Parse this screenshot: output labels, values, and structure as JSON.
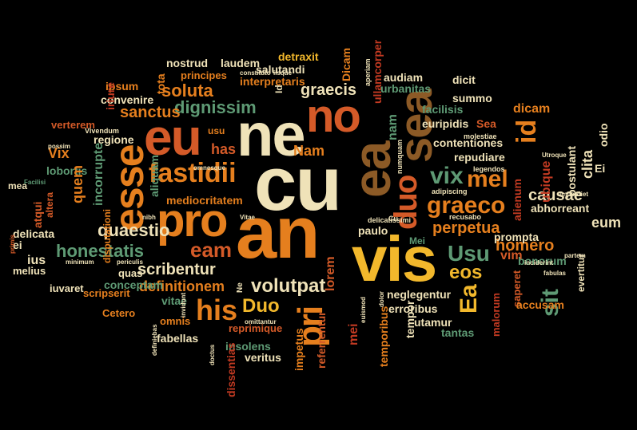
{
  "palette": {
    "cream": "#efe2b8",
    "gold": "#f2b82c",
    "orange": "#e57f1e",
    "rust": "#d45a28",
    "red": "#c23a22",
    "brown": "#8c5a26",
    "teal": "#5e9a74",
    "green": "#3f8a5e"
  },
  "words": [
    {
      "text": "cu"
    },
    {
      "text": "an"
    },
    {
      "text": "ne"
    },
    {
      "text": "no"
    },
    {
      "text": "eu"
    },
    {
      "text": "ea"
    },
    {
      "text": "vis"
    },
    {
      "text": "pro"
    },
    {
      "text": "sea"
    },
    {
      "text": "duo"
    },
    {
      "text": "esse"
    },
    {
      "text": "fastidii"
    },
    {
      "text": "graeco"
    },
    {
      "text": "vix"
    },
    {
      "text": "mel"
    },
    {
      "text": "his"
    },
    {
      "text": "pri"
    },
    {
      "text": "eam"
    },
    {
      "text": "Usu"
    },
    {
      "text": "eos"
    },
    {
      "text": "Duo"
    },
    {
      "text": "volutpat"
    },
    {
      "text": "id"
    },
    {
      "text": "Ea"
    },
    {
      "text": "sit"
    },
    {
      "text": "quaestio"
    },
    {
      "text": "honestatis"
    },
    {
      "text": "scribentur"
    },
    {
      "text": "definitionem"
    },
    {
      "text": "perpetua"
    },
    {
      "text": "homero"
    },
    {
      "text": "causae"
    },
    {
      "text": "dignissim"
    },
    {
      "text": "sanctus"
    },
    {
      "text": "soluta"
    },
    {
      "text": "graecis"
    },
    {
      "text": "urbanitas"
    },
    {
      "text": "nostrud"
    },
    {
      "text": "laudem"
    },
    {
      "text": "detraxit"
    },
    {
      "text": "Dicam"
    },
    {
      "text": "principes"
    },
    {
      "text": "salutandi"
    },
    {
      "text": "interpretaris"
    },
    {
      "text": "audiam"
    },
    {
      "text": "dicit"
    },
    {
      "text": "summo"
    },
    {
      "text": "ipsum"
    },
    {
      "text": "tota"
    },
    {
      "text": "convenire"
    },
    {
      "text": "iriure"
    },
    {
      "text": "verterem"
    },
    {
      "text": "usu"
    },
    {
      "text": "has"
    },
    {
      "text": "Nam"
    },
    {
      "text": "nam"
    },
    {
      "text": "Id"
    },
    {
      "text": "ullamcorper"
    },
    {
      "text": "facilisis"
    },
    {
      "text": "euripidis"
    },
    {
      "text": "Sea"
    },
    {
      "text": "dicam"
    },
    {
      "text": "clita"
    },
    {
      "text": "postulant"
    },
    {
      "text": "odio"
    },
    {
      "text": "Ei"
    },
    {
      "text": "Vix"
    },
    {
      "text": "regione"
    },
    {
      "text": "contentiones"
    },
    {
      "text": "repudiare"
    },
    {
      "text": "ubique"
    },
    {
      "text": "eum"
    },
    {
      "text": "abhorreant"
    },
    {
      "text": "lobortis"
    },
    {
      "text": "quem"
    },
    {
      "text": "incorrupte"
    },
    {
      "text": "disputationi"
    },
    {
      "text": "aliquam"
    },
    {
      "text": "mediocritatem"
    },
    {
      "text": "mea"
    },
    {
      "text": "atqui"
    },
    {
      "text": "altera"
    },
    {
      "text": "delicata"
    },
    {
      "text": "ei"
    },
    {
      "text": "ius"
    },
    {
      "text": "melius"
    },
    {
      "text": "iuvaret"
    },
    {
      "text": "conceptam"
    },
    {
      "text": "quas"
    },
    {
      "text": "scripserit"
    },
    {
      "text": "Cetero"
    },
    {
      "text": "vitae"
    },
    {
      "text": "Ne"
    },
    {
      "text": "omnis"
    },
    {
      "text": "fabellas"
    },
    {
      "text": "reprimique"
    },
    {
      "text": "insolens"
    },
    {
      "text": "impetus"
    },
    {
      "text": "veritus"
    },
    {
      "text": "dissentias"
    },
    {
      "text": "mei"
    },
    {
      "text": "lorem"
    },
    {
      "text": "Mei"
    },
    {
      "text": "paulo"
    },
    {
      "text": "neglegentur"
    },
    {
      "text": "erroribus"
    },
    {
      "text": "utamur"
    },
    {
      "text": "tantas"
    },
    {
      "text": "tempor"
    },
    {
      "text": "temporibus"
    },
    {
      "text": "referrentur"
    },
    {
      "text": "malorum"
    },
    {
      "text": "saperet"
    },
    {
      "text": "vim"
    },
    {
      "text": "accusam"
    },
    {
      "text": "bonorum"
    },
    {
      "text": "evertitur"
    },
    {
      "text": "prompta"
    },
    {
      "text": "alienum"
    },
    {
      "text": "possim"
    },
    {
      "text": "Vivendum"
    },
    {
      "text": "Facilisi"
    },
    {
      "text": "omnesque"
    },
    {
      "text": "constituto"
    },
    {
      "text": "iisque"
    },
    {
      "text": "aperiam"
    },
    {
      "text": "molestiae"
    },
    {
      "text": "legendos"
    },
    {
      "text": "numquam"
    },
    {
      "text": "adipiscing"
    },
    {
      "text": "recusabo"
    },
    {
      "text": "delicatissimi"
    },
    {
      "text": "Cu"
    },
    {
      "text": "nibh"
    },
    {
      "text": "Vitae"
    },
    {
      "text": "invidunt"
    },
    {
      "text": "periculis"
    },
    {
      "text": "minimum"
    },
    {
      "text": "omittantur"
    },
    {
      "text": "inciderint"
    },
    {
      "text": "imperdiet"
    },
    {
      "text": "partem"
    },
    {
      "text": "fabulas"
    },
    {
      "text": "dolor"
    },
    {
      "text": "euismod"
    },
    {
      "text": "definiebas"
    },
    {
      "text": "doctus"
    },
    {
      "text": "primis"
    },
    {
      "text": "Utroque"
    }
  ]
}
